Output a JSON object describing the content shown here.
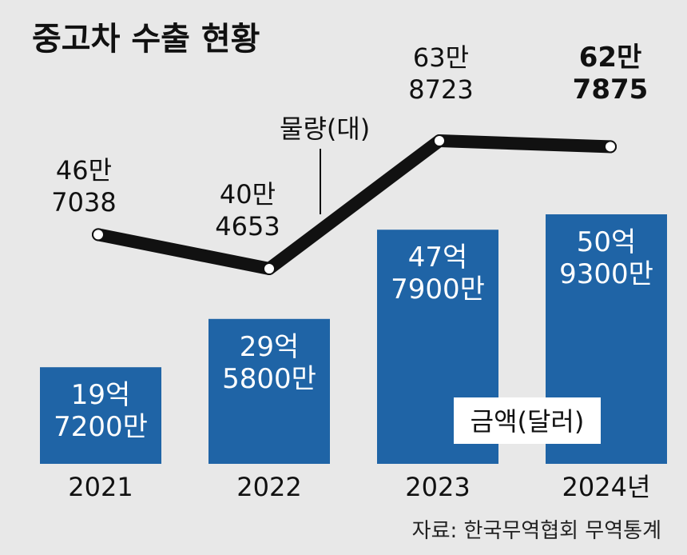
{
  "chart_data": {
    "type": "bar",
    "title": "중고차 수출 현황",
    "categories": [
      "2021",
      "2022",
      "2023",
      "2024년"
    ],
    "series": [
      {
        "name": "금액(달러)",
        "type": "bar",
        "values": [
          1972000000,
          2958000000,
          4779000000,
          5093000000
        ],
        "labels": [
          [
            "19억",
            "7200만"
          ],
          [
            "29억",
            "5800만"
          ],
          [
            "47억",
            "7900만"
          ],
          [
            "50억",
            "9300만"
          ]
        ],
        "ylim": [
          0,
          5600000000
        ],
        "color": "#1f64a6"
      },
      {
        "name": "물량(대)",
        "type": "line",
        "values": [
          467038,
          404653,
          638723,
          627875
        ],
        "labels": [
          [
            "46만",
            "7038"
          ],
          [
            "40만",
            "4653"
          ],
          [
            "63만",
            "8723"
          ],
          [
            "62만",
            "7875"
          ]
        ],
        "ylim": [
          0,
          700000
        ],
        "color": "#111111"
      }
    ],
    "source": "자료: 한국무역협회 무역통계",
    "grid": false
  }
}
